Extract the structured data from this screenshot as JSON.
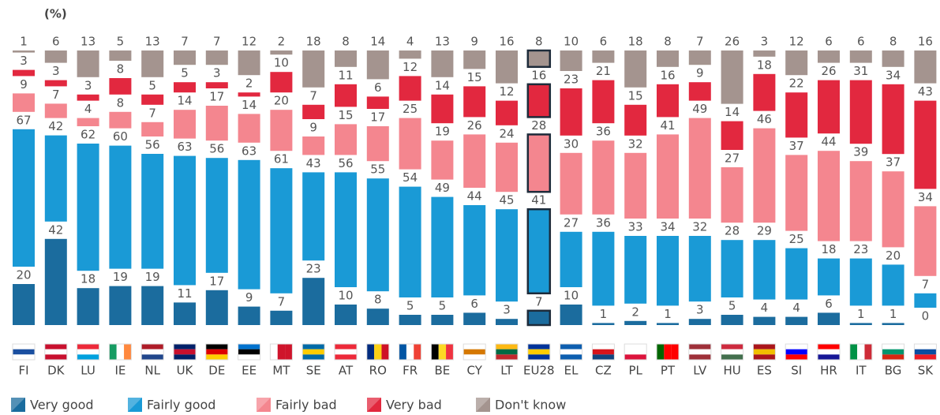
{
  "chart_data": {
    "type": "floating-stacked-bar",
    "title": "(%)",
    "categories": [
      "FI",
      "DK",
      "LU",
      "IE",
      "NL",
      "UK",
      "DE",
      "EE",
      "MT",
      "SE",
      "AT",
      "RO",
      "FR",
      "BE",
      "CY",
      "LT",
      "EU28",
      "EL",
      "CZ",
      "PL",
      "PT",
      "LV",
      "HU",
      "ES",
      "SI",
      "HR",
      "IT",
      "BG",
      "SK"
    ],
    "highlight_category": "EU28",
    "series": [
      {
        "name": "Very good",
        "color": "#1b6c9e",
        "values": [
          20,
          42,
          18,
          19,
          19,
          11,
          17,
          9,
          7,
          23,
          10,
          8,
          5,
          5,
          6,
          3,
          7,
          10,
          1,
          2,
          1,
          3,
          5,
          4,
          4,
          6,
          1,
          1,
          0
        ]
      },
      {
        "name": "Fairly good",
        "color": "#1a9ad6",
        "values": [
          67,
          42,
          62,
          60,
          56,
          63,
          56,
          63,
          61,
          43,
          56,
          55,
          54,
          49,
          44,
          45,
          41,
          27,
          36,
          33,
          34,
          32,
          28,
          29,
          25,
          18,
          23,
          20,
          7
        ]
      },
      {
        "name": "Fairly bad",
        "color": "#f4868f",
        "values": [
          9,
          7,
          4,
          8,
          7,
          14,
          17,
          14,
          20,
          9,
          15,
          17,
          25,
          19,
          26,
          24,
          28,
          30,
          36,
          32,
          41,
          49,
          27,
          46,
          37,
          44,
          39,
          37,
          34
        ]
      },
      {
        "name": "Very bad",
        "color": "#e2283f",
        "values": [
          3,
          3,
          3,
          8,
          5,
          5,
          3,
          2,
          10,
          7,
          11,
          6,
          12,
          14,
          15,
          12,
          16,
          23,
          21,
          15,
          16,
          9,
          14,
          18,
          22,
          26,
          31,
          34,
          43
        ]
      },
      {
        "name": "Don't know",
        "color": "#a4948f",
        "values": [
          1,
          6,
          13,
          5,
          13,
          7,
          7,
          12,
          2,
          18,
          8,
          14,
          4,
          13,
          9,
          16,
          8,
          10,
          6,
          18,
          8,
          7,
          26,
          3,
          12,
          6,
          6,
          8,
          16
        ]
      }
    ]
  }
}
